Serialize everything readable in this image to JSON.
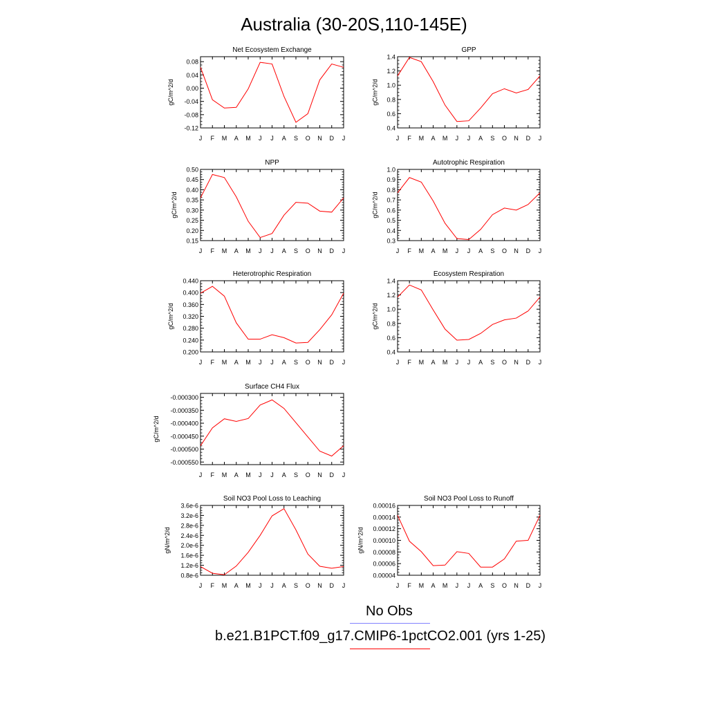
{
  "title": "Australia (30-20S,110-145E)",
  "month_labels": [
    "J",
    "F",
    "M",
    "A",
    "M",
    "J",
    "J",
    "A",
    "S",
    "O",
    "N",
    "D",
    "J"
  ],
  "series_color": "#ff0000",
  "obs_color": "#8080ff",
  "legend": {
    "obs_label": "No Obs",
    "model_label": "b.e21.B1PCT.f09_g17.CMIP6-1pctCO2.001 (yrs 1-25)"
  },
  "chart_data": [
    {
      "type": "line",
      "title": "Net Ecosystem Exchange",
      "ylabel": "gC/m^2/d",
      "ylim": [
        -0.12,
        0.095
      ],
      "yticks": [
        -0.12,
        -0.08,
        -0.04,
        0.0,
        0.04,
        0.08
      ],
      "ytick_labels": [
        "-0.12",
        "-0.08",
        "-0.04",
        "0.00",
        "0.04",
        "0.08"
      ],
      "values": [
        0.063,
        -0.035,
        -0.06,
        -0.058,
        -0.002,
        0.078,
        0.073,
        -0.025,
        -0.103,
        -0.077,
        0.025,
        0.073,
        0.063
      ]
    },
    {
      "type": "line",
      "title": "GPP",
      "ylabel": "gC/m^2/d",
      "ylim": [
        0.4,
        1.4
      ],
      "yticks": [
        0.4,
        0.6,
        0.8,
        1.0,
        1.2,
        1.4
      ],
      "ytick_labels": [
        "0.4",
        "0.6",
        "0.8",
        "1.0",
        "1.2",
        "1.4"
      ],
      "values": [
        1.13,
        1.39,
        1.33,
        1.05,
        0.72,
        0.49,
        0.5,
        0.68,
        0.88,
        0.95,
        0.89,
        0.94,
        1.13
      ]
    },
    {
      "type": "line",
      "title": "NPP",
      "ylabel": "gC/m^2/d",
      "ylim": [
        0.15,
        0.5
      ],
      "yticks": [
        0.15,
        0.2,
        0.25,
        0.3,
        0.35,
        0.4,
        0.45,
        0.5
      ],
      "ytick_labels": [
        "0.15",
        "0.20",
        "0.25",
        "0.30",
        "0.35",
        "0.40",
        "0.45",
        "0.50"
      ],
      "values": [
        0.36,
        0.475,
        0.46,
        0.365,
        0.245,
        0.165,
        0.185,
        0.275,
        0.338,
        0.334,
        0.295,
        0.29,
        0.36
      ]
    },
    {
      "type": "line",
      "title": "Autotrophic Respiration",
      "ylabel": "gC/m^2/d",
      "ylim": [
        0.3,
        1.0
      ],
      "yticks": [
        0.3,
        0.4,
        0.5,
        0.6,
        0.7,
        0.8,
        0.9,
        1.0
      ],
      "ytick_labels": [
        "0.3",
        "0.4",
        "0.5",
        "0.6",
        "0.7",
        "0.8",
        "0.9",
        "1.0"
      ],
      "values": [
        0.77,
        0.92,
        0.875,
        0.69,
        0.47,
        0.32,
        0.31,
        0.41,
        0.555,
        0.62,
        0.6,
        0.655,
        0.77
      ]
    },
    {
      "type": "line",
      "title": "Heterotrophic Respiration",
      "ylabel": "gC/m^2/d",
      "ylim": [
        0.2,
        0.44
      ],
      "yticks": [
        0.2,
        0.24,
        0.28,
        0.32,
        0.36,
        0.4,
        0.44
      ],
      "ytick_labels": [
        "0.200",
        "0.240",
        "0.280",
        "0.320",
        "0.360",
        "0.400",
        "0.440"
      ],
      "values": [
        0.398,
        0.421,
        0.388,
        0.298,
        0.243,
        0.243,
        0.258,
        0.248,
        0.23,
        0.232,
        0.275,
        0.325,
        0.398
      ]
    },
    {
      "type": "line",
      "title": "Ecosystem Respiration",
      "ylabel": "gC/m^2/d",
      "ylim": [
        0.4,
        1.4
      ],
      "yticks": [
        0.4,
        0.6,
        0.8,
        1.0,
        1.2,
        1.4
      ],
      "ytick_labels": [
        "0.4",
        "0.6",
        "0.8",
        "1.0",
        "1.2",
        "1.4"
      ],
      "values": [
        1.17,
        1.34,
        1.27,
        0.99,
        0.72,
        0.565,
        0.575,
        0.66,
        0.785,
        0.85,
        0.875,
        0.975,
        1.17
      ]
    },
    {
      "type": "line",
      "title": "Surface CH4 Flux",
      "ylabel": "gC/m^2/d",
      "ylim": [
        -0.00056,
        -0.000285
      ],
      "yticks": [
        -0.00055,
        -0.0005,
        -0.00045,
        -0.0004,
        -0.00035,
        -0.0003
      ],
      "ytick_labels": [
        "-0.000550",
        "-0.000500",
        "-0.000450",
        "-0.000400",
        "-0.000350",
        "-0.000300"
      ],
      "values": [
        -0.000487,
        -0.000418,
        -0.000383,
        -0.000393,
        -0.000382,
        -0.00033,
        -0.00031,
        -0.000343,
        -0.000398,
        -0.000453,
        -0.000508,
        -0.000527,
        -0.000487
      ]
    },
    {
      "type": "line",
      "title": "Soil NO3 Pool Loss to Leaching",
      "ylabel": "gN/m^2/d",
      "ylim": [
        8e-07,
        3.6e-06
      ],
      "yticks": [
        8e-07,
        1.2e-06,
        1.6e-06,
        2e-06,
        2.4e-06,
        2.8e-06,
        3.2e-06,
        3.6e-06
      ],
      "ytick_labels": [
        "0.8e-6",
        "1.2e-6",
        "1.6e-6",
        "2.0e-6",
        "2.4e-6",
        "2.8e-6",
        "3.2e-6",
        "3.6e-6"
      ],
      "values": [
        1.15e-06,
        8.8e-07,
        8.2e-07,
        1.17e-06,
        1.72e-06,
        2.4e-06,
        3.18e-06,
        3.47e-06,
        2.62e-06,
        1.65e-06,
        1.16e-06,
        1.08e-06,
        1.15e-06
      ]
    },
    {
      "type": "line",
      "title": "Soil NO3 Pool Loss to Runoff",
      "ylabel": "gN/m^2/d",
      "ylim": [
        4e-05,
        0.00016
      ],
      "yticks": [
        4e-05,
        6e-05,
        8e-05,
        0.0001,
        0.00012,
        0.00014,
        0.00016
      ],
      "ytick_labels": [
        "0.00004",
        "0.00006",
        "0.00008",
        "0.00010",
        "0.00012",
        "0.00014",
        "0.00016"
      ],
      "values": [
        0.000143,
        9.85e-05,
        8.05e-05,
        5.65e-05,
        5.75e-05,
        8.05e-05,
        7.75e-05,
        5.4e-05,
        5.4e-05,
        6.8e-05,
        9.85e-05,
        0.0001,
        0.000143
      ]
    }
  ]
}
